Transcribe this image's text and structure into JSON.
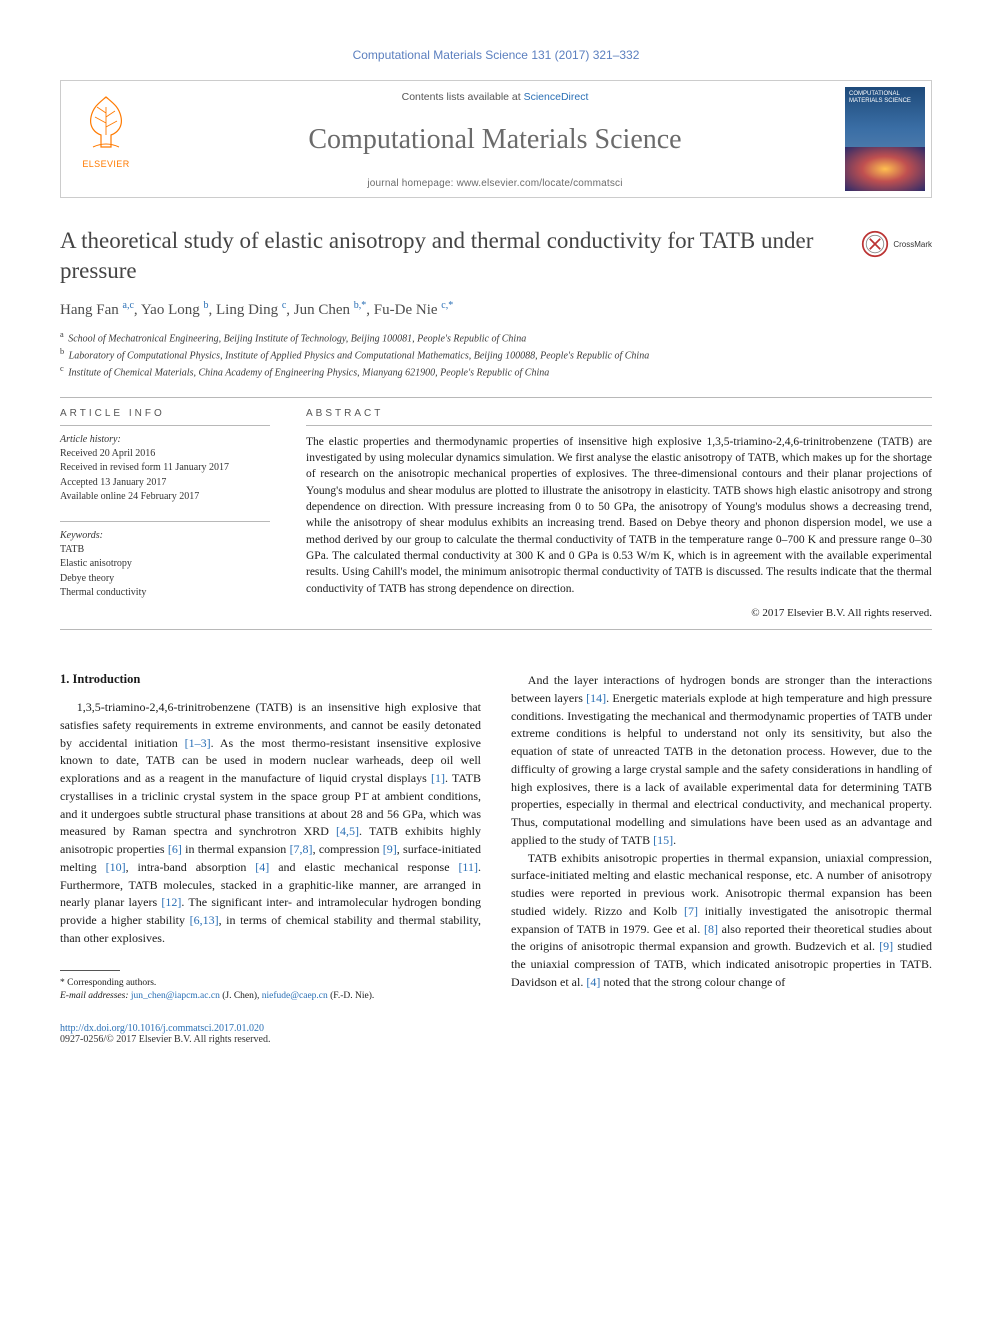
{
  "running_head": "Computational Materials Science 131 (2017) 321–332",
  "header": {
    "contents_prefix": "Contents lists available at ",
    "contents_link": "ScienceDirect",
    "journal_name": "Computational Materials Science",
    "homepage_prefix": "journal homepage: ",
    "homepage_url": "www.elsevier.com/locate/commatsci",
    "publisher_label": "ELSEVIER",
    "cover_title": "COMPUTATIONAL MATERIALS SCIENCE"
  },
  "crossmark_label": "CrossMark",
  "title": "A theoretical study of elastic anisotropy and thermal conductivity for TATB under pressure",
  "authors_html": "Hang Fan <sup>a,c</sup>, Yao Long <sup>b</sup>, Ling Ding <sup>c</sup>, Jun Chen <sup>b,*</sup>, Fu-De Nie <sup>c,*</sup>",
  "affiliations": {
    "a": "School of Mechatronical Engineering, Beijing Institute of Technology, Beijing 100081, People's Republic of China",
    "b": "Laboratory of Computational Physics, Institute of Applied Physics and Computational Mathematics, Beijing 100088, People's Republic of China",
    "c": "Institute of Chemical Materials, China Academy of Engineering Physics, Mianyang 621900, People's Republic of China"
  },
  "info": {
    "heading": "ARTICLE INFO",
    "history_label": "Article history:",
    "received": "Received 20 April 2016",
    "revised": "Received in revised form 11 January 2017",
    "accepted": "Accepted 13 January 2017",
    "online": "Available online 24 February 2017",
    "keywords_label": "Keywords:",
    "keywords": [
      "TATB",
      "Elastic anisotropy",
      "Debye theory",
      "Thermal conductivity"
    ]
  },
  "abstract": {
    "heading": "ABSTRACT",
    "text": "The elastic properties and thermodynamic properties of insensitive high explosive 1,3,5-triamino-2,4,6-trinitrobenzene (TATB) are investigated by using molecular dynamics simulation. We first analyse the elastic anisotropy of TATB, which makes up for the shortage of research on the anisotropic mechanical properties of explosives. The three-dimensional contours and their planar projections of Young's modulus and shear modulus are plotted to illustrate the anisotropy in elasticity. TATB shows high elastic anisotropy and strong dependence on direction. With pressure increasing from 0 to 50 GPa, the anisotropy of Young's modulus shows a decreasing trend, while the anisotropy of shear modulus exhibits an increasing trend. Based on Debye theory and phonon dispersion model, we use a method derived by our group to calculate the thermal conductivity of TATB in the temperature range 0–700 K and pressure range 0–30 GPa. The calculated thermal conductivity at 300 K and 0 GPa is 0.53 W/m K, which is in agreement with the available experimental results. Using Cahill's model, the minimum anisotropic thermal conductivity of TATB is discussed. The results indicate that the thermal conductivity of TATB has strong dependence on direction.",
    "copyright": "© 2017 Elsevier B.V. All rights reserved."
  },
  "body": {
    "section_heading": "1. Introduction",
    "col1_p1": "1,3,5-triamino-2,4,6-trinitrobenzene (TATB) is an insensitive high explosive that satisfies safety requirements in extreme environments, and cannot be easily detonated by accidental initiation [1–3]. As the most thermo-resistant insensitive explosive known to date, TATB can be used in modern nuclear warheads, deep oil well explorations and as a reagent in the manufacture of liquid crystal displays [1]. TATB crystallises in a triclinic crystal system in the space group P1̄ at ambient conditions, and it undergoes subtle structural phase transitions at about 28 and 56 GPa, which was measured by Raman spectra and synchrotron XRD [4,5]. TATB exhibits highly anisotropic properties [6] in thermal expansion [7,8], compression [9], surface-initiated melting [10], intra-band absorption [4] and elastic mechanical response [11]. Furthermore, TATB molecules, stacked in a graphitic-like manner, are arranged in nearly planar layers [12]. The significant inter- and intramolecular hydrogen bonding provide a higher stability [6,13], in terms of chemical stability and thermal stability, than other explosives.",
    "col2_p1": "And the layer interactions of hydrogen bonds are stronger than the interactions between layers [14]. Energetic materials explode at high temperature and high pressure conditions. Investigating the mechanical and thermodynamic properties of TATB under extreme conditions is helpful to understand not only its sensitivity, but also the equation of state of unreacted TATB in the detonation process. However, due to the difficulty of growing a large crystal sample and the safety considerations in handling of high explosives, there is a lack of available experimental data for determining TATB properties, especially in thermal and electrical conductivity, and mechanical property. Thus, computational modelling and simulations have been used as an advantage and applied to the study of TATB [15].",
    "col2_p2": "TATB exhibits anisotropic properties in thermal expansion, uniaxial compression, surface-initiated melting and elastic mechanical response, etc. A number of anisotropy studies were reported in previous work. Anisotropic thermal expansion has been studied widely. Rizzo and Kolb [7] initially investigated the anisotropic thermal expansion of TATB in 1979. Gee et al. [8] also reported their theoretical studies about the origins of anisotropic thermal expansion and growth. Budzevich et al. [9] studied the uniaxial compression of TATB, which indicated anisotropic properties in TATB. Davidson et al. [4] noted that the strong colour change of"
  },
  "footnotes": {
    "corr": "* Corresponding authors.",
    "email_label": "E-mail addresses:",
    "email1": "jun_chen@iapcm.ac.cn",
    "email1_who": "(J. Chen),",
    "email2": "niefude@caep.cn",
    "email2_who": "(F.-D. Nie)."
  },
  "footer": {
    "doi": "http://dx.doi.org/10.1016/j.commatsci.2017.01.020",
    "issn_line": "0927-0256/© 2017 Elsevier B.V. All rights reserved."
  },
  "colors": {
    "link": "#2a6fb5",
    "publisher_orange": "#ff7a00",
    "journal_grey": "#6b6b6b",
    "rule": "#b8b8b8"
  }
}
